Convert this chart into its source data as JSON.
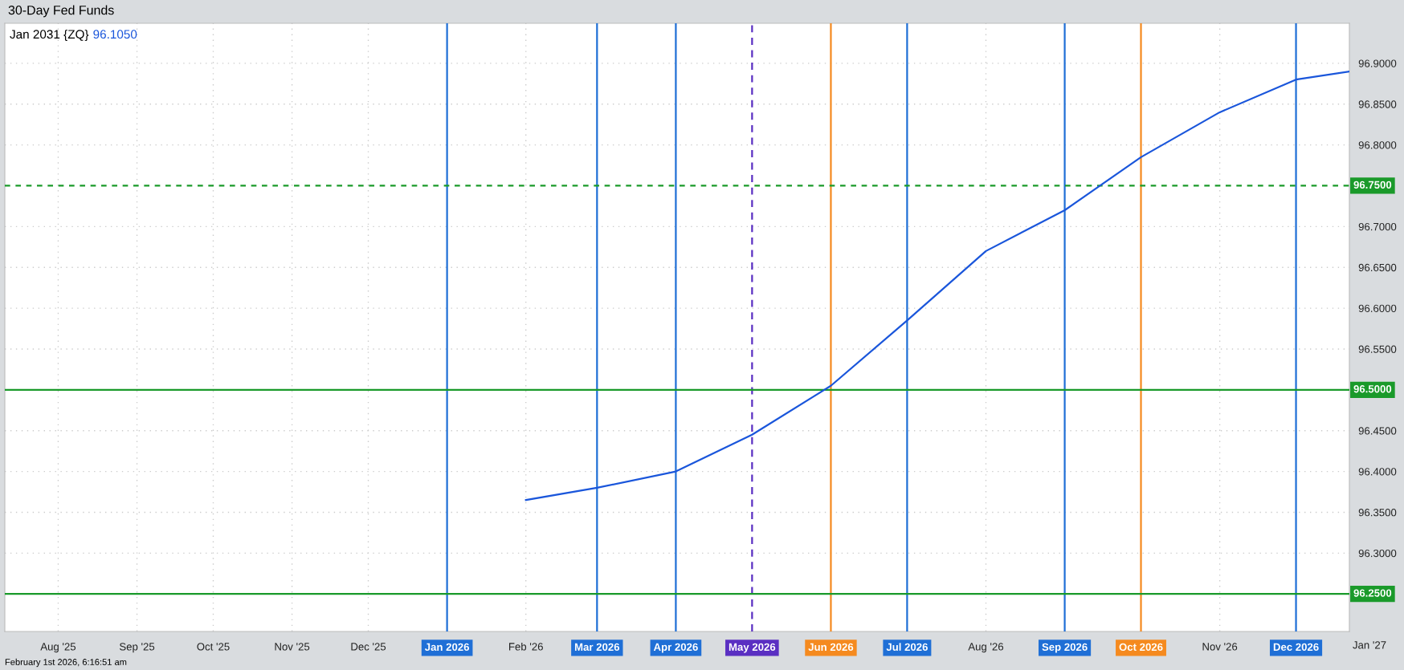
{
  "chart_data": {
    "type": "line",
    "title": "30-Day Fed Funds",
    "subtitle": "Jan 2031 {ZQ}",
    "annotations": [
      "96.1050",
      "February 1st 2026, 6:16:51 am",
      "Jan '27"
    ],
    "series": [
      {
        "color": "#1a56db",
        "x": [
          "2026-02",
          "2026-03",
          "2026-04",
          "2026-05",
          "2026-06",
          "2026-07",
          "2026-08",
          "2026-09",
          "2026-10",
          "2026-11",
          "2026-12",
          "2026-12-22"
        ],
        "values": [
          96.365,
          96.38,
          96.4,
          96.445,
          96.505,
          96.585,
          96.67,
          96.72,
          96.785,
          96.84,
          96.88,
          96.89
        ]
      }
    ],
    "xlim": [
      "2025-07-11",
      "2026-12-22"
    ],
    "xticks": [
      {
        "value": "2025-08",
        "label": "Aug '25"
      },
      {
        "value": "2025-09",
        "label": "Sep '25"
      },
      {
        "value": "2025-10",
        "label": "Oct '25"
      },
      {
        "value": "2025-11",
        "label": "Nov '25"
      },
      {
        "value": "2025-12",
        "label": "Dec '25"
      },
      {
        "value": "2026-02",
        "label": "Feb '26"
      },
      {
        "value": "2026-08",
        "label": "Aug '26"
      },
      {
        "value": "2026-11",
        "label": "Nov '26"
      }
    ],
    "ylim": [
      96.204,
      96.949
    ],
    "yticks": [
      {
        "value": 96.3,
        "label": "96.3000"
      },
      {
        "value": 96.35,
        "label": "96.3500"
      },
      {
        "value": 96.4,
        "label": "96.4000"
      },
      {
        "value": 96.45,
        "label": "96.4500"
      },
      {
        "value": 96.55,
        "label": "96.5500"
      },
      {
        "value": 96.6,
        "label": "96.6000"
      },
      {
        "value": 96.65,
        "label": "96.6500"
      },
      {
        "value": 96.7,
        "label": "96.7000"
      },
      {
        "value": 96.8,
        "label": "96.8000"
      },
      {
        "value": 96.85,
        "label": "96.8500"
      },
      {
        "value": 96.9,
        "label": "96.9000"
      }
    ],
    "grid": true,
    "line_style": "solid",
    "marker": "none",
    "ref_lines": [
      {
        "axis": "x",
        "value": "2026-01",
        "label": "Jan 2026",
        "color": "#1f6fd6",
        "line_style": "solid"
      },
      {
        "axis": "x",
        "value": "2026-03",
        "label": "Mar 2026",
        "color": "#1f6fd6",
        "line_style": "solid"
      },
      {
        "axis": "x",
        "value": "2026-04",
        "label": "Apr 2026",
        "color": "#1f6fd6",
        "line_style": "solid"
      },
      {
        "axis": "x",
        "value": "2026-05",
        "label": "May 2026",
        "color": "#5a2fc2",
        "line_style": "dashed"
      },
      {
        "axis": "x",
        "value": "2026-06",
        "label": "Jun 2026",
        "color": "#f58a1f",
        "line_style": "solid"
      },
      {
        "axis": "x",
        "value": "2026-07",
        "label": "Jul 2026",
        "color": "#1f6fd6",
        "line_style": "solid"
      },
      {
        "axis": "x",
        "value": "2026-09",
        "label": "Sep 2026",
        "color": "#1f6fd6",
        "line_style": "solid"
      },
      {
        "axis": "x",
        "value": "2026-10",
        "label": "Oct 2026",
        "color": "#f58a1f",
        "line_style": "solid"
      },
      {
        "axis": "x",
        "value": "2026-12",
        "label": "Dec 2026",
        "color": "#1f6fd6",
        "line_style": "solid"
      },
      {
        "axis": "y",
        "value": 96.75,
        "label": "96.7500",
        "color": "#1a9a2a",
        "line_style": "dotted"
      },
      {
        "axis": "y",
        "value": 96.5,
        "label": "96.5000",
        "color": "#1a9a2a",
        "line_style": "solid"
      },
      {
        "axis": "y",
        "value": 96.25,
        "label": "96.2500",
        "color": "#1a9a2a",
        "line_style": "solid"
      }
    ]
  }
}
